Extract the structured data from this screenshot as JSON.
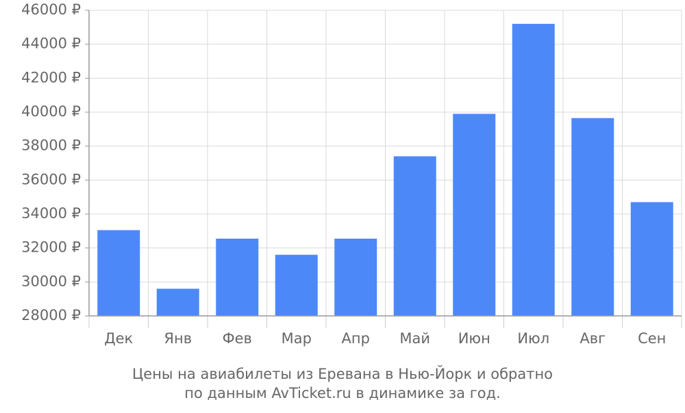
{
  "chart_data": {
    "type": "bar",
    "title": [
      "Цены на авиабилеты из Еревана в Нью-Йорк и обратно",
      "по данным AvTicket.ru в динамике за год."
    ],
    "categories": [
      "Дек",
      "Янв",
      "Фев",
      "Мар",
      "Апр",
      "Май",
      "Июн",
      "Июл",
      "Авг",
      "Сен"
    ],
    "values": [
      33050,
      29600,
      32550,
      31600,
      32550,
      37400,
      39900,
      45200,
      39650,
      34700
    ],
    "color": "#4d88f9",
    "ylim": [
      28000,
      46000
    ],
    "yticks": [
      {
        "value": 28000,
        "label": "28000 ₽"
      },
      {
        "value": 30000,
        "label": "30000 ₽"
      },
      {
        "value": 32000,
        "label": "32000 ₽"
      },
      {
        "value": 34000,
        "label": "34000 ₽"
      },
      {
        "value": 36000,
        "label": "36000 ₽"
      },
      {
        "value": 38000,
        "label": "38000 ₽"
      },
      {
        "value": 40000,
        "label": "40000 ₽"
      },
      {
        "value": 42000,
        "label": "42000 ₽"
      },
      {
        "value": 44000,
        "label": "44000 ₽"
      },
      {
        "value": 46000,
        "label": "46000 ₽"
      }
    ],
    "grid": true
  }
}
